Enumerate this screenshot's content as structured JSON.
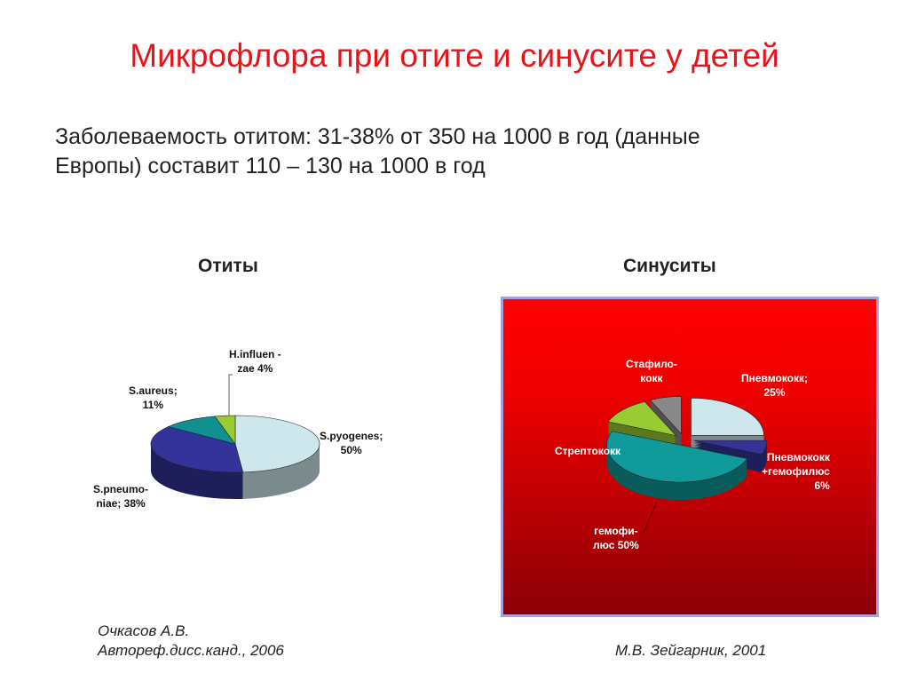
{
  "title": "Микрофлора при отите и синусите у детей",
  "intro": [
    "Заболеваемость отитом: 31-38% от 350 на 1000 в год (данные",
    "Европы) составит 110 – 130 на 1000 в год"
  ],
  "chart_data": [
    {
      "type": "pie",
      "title": "Отиты",
      "three_d": true,
      "slices": [
        {
          "label": "S.pyogenes; 50%",
          "value": 50,
          "color": "#cde7ec"
        },
        {
          "label": "S.pneumo-niae; 38%",
          "value": 38,
          "color": "#333399"
        },
        {
          "label": "S.aureus; 11%",
          "value": 11,
          "color": "#109090"
        },
        {
          "label": "H.influen-zae 4%",
          "value": 4,
          "color": "#99cc33"
        }
      ]
    },
    {
      "type": "pie",
      "title": "Синуситы",
      "three_d": true,
      "exploded": true,
      "background": "#ee0000",
      "slices": [
        {
          "label": "Пневмококк; 25%",
          "value": 25,
          "color": "#cde7ec"
        },
        {
          "label": "Пневмококк +гемофилюс 6%",
          "value": 6,
          "color": "#333399"
        },
        {
          "label": "гемофилюс 50%",
          "value": 50,
          "color": "#109a9a"
        },
        {
          "label": "Стрептококк",
          "value": 12,
          "color": "#99cc33"
        },
        {
          "label": "Стафилококк",
          "value": 7,
          "color": "#888888"
        }
      ]
    }
  ],
  "labels": {
    "left": {
      "pyo": [
        "S.pyogenes;",
        "50%"
      ],
      "pneu": [
        "S.pneumo-",
        "niae; 38%"
      ],
      "aur": [
        "S.aureus;",
        "11%"
      ],
      "hi": [
        "H.influen -",
        "zae 4%"
      ]
    },
    "right": {
      "pn": [
        "Пневмококк;",
        "25%"
      ],
      "pnh": [
        "Пневмококк",
        "+гемофилюс",
        "6%"
      ],
      "hem": [
        "гемофи-",
        "люс 50%"
      ],
      "strep": "Стрептококк",
      "staph": [
        "Стафило-",
        "кокк"
      ]
    }
  },
  "sources": {
    "left": [
      "Очкасов А.В.",
      "Автореф.дисс.канд., 2006"
    ],
    "right": "М.В. Зейгарник, 2001"
  }
}
